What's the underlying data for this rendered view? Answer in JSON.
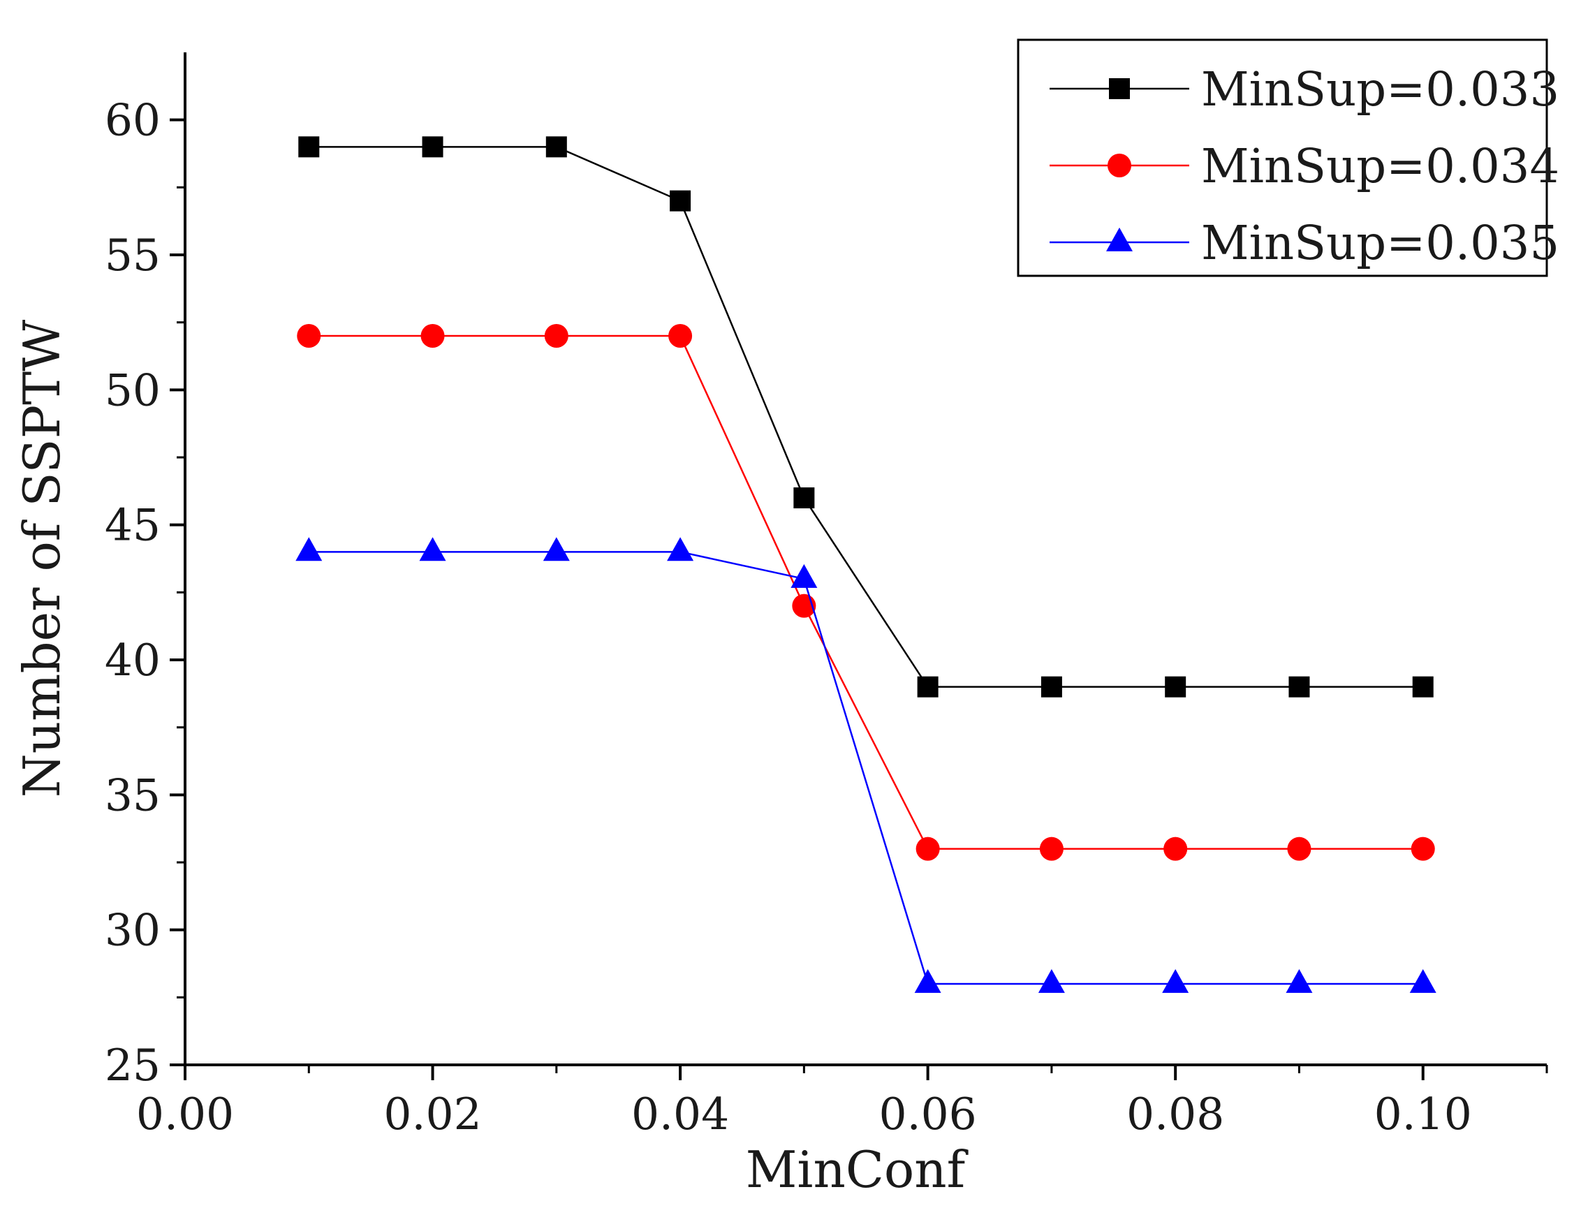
{
  "chart_data": {
    "type": "line",
    "title": "",
    "xlabel": "MinConf",
    "ylabel": "Number of SSPTW",
    "xlim": [
      0.0,
      0.11
    ],
    "ylim": [
      25,
      62.5
    ],
    "x_ticks": [
      "0.00",
      "0.02",
      "0.04",
      "0.06",
      "0.08",
      "0.10"
    ],
    "y_ticks": [
      "25",
      "30",
      "35",
      "40",
      "45",
      "50",
      "55",
      "60"
    ],
    "grid": false,
    "legend_position": "top-right",
    "x": [
      0.01,
      0.02,
      0.03,
      0.04,
      0.05,
      0.06,
      0.07,
      0.08,
      0.09,
      0.1
    ],
    "series": [
      {
        "name": "MinSup=0.033",
        "color": "#000000",
        "marker": "square",
        "values": [
          59,
          59,
          59,
          57,
          46,
          39,
          39,
          39,
          39,
          39
        ]
      },
      {
        "name": "MinSup=0.034",
        "color": "#ff0000",
        "marker": "circle",
        "values": [
          52,
          52,
          52,
          52,
          42,
          33,
          33,
          33,
          33,
          33
        ]
      },
      {
        "name": "MinSup=0.035",
        "color": "#0000ff",
        "marker": "triangle",
        "values": [
          44,
          44,
          44,
          44,
          43,
          28,
          28,
          28,
          28,
          28
        ]
      }
    ]
  }
}
